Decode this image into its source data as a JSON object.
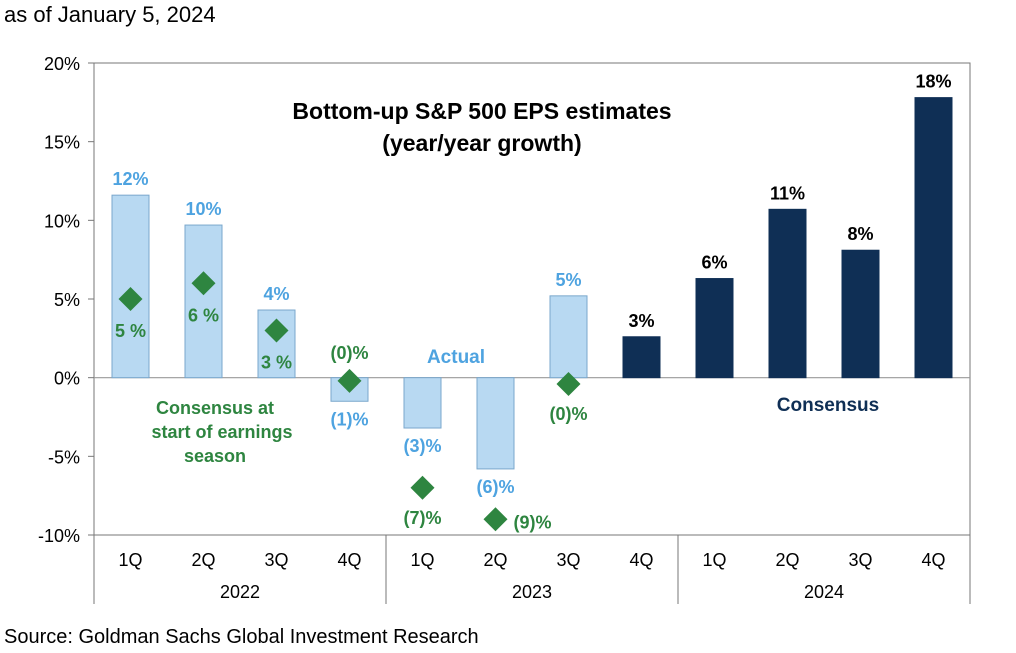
{
  "header": {
    "as_of": "as of January 5, 2024"
  },
  "footer": {
    "source": "Source: Goldman Sachs Global Investment Research"
  },
  "colors": {
    "actual_fill": "#b8d9f2",
    "actual_stroke": "#7aa7cc",
    "actual_label": "#4ea3e0",
    "consensus_bar": "#0f2f55",
    "diamond": "#2e8540",
    "diamond_label": "#2e8540",
    "consensus_label": "#0f2f55"
  },
  "chart_data": {
    "type": "bar",
    "title": "Bottom-up S&P 500 EPS estimates",
    "subtitle": "(year/year growth)",
    "ylim": [
      -10,
      20
    ],
    "yticks": [
      -10,
      -5,
      0,
      5,
      10,
      15,
      20
    ],
    "ytick_labels": [
      "-10%",
      "-5%",
      "0%",
      "5%",
      "10%",
      "15%",
      "20%"
    ],
    "grid": false,
    "categories": [
      "1Q",
      "2Q",
      "3Q",
      "4Q",
      "1Q",
      "2Q",
      "3Q",
      "4Q",
      "1Q",
      "2Q",
      "3Q",
      "4Q"
    ],
    "groups": [
      {
        "label": "2022",
        "count": 4
      },
      {
        "label": "2023",
        "count": 4
      },
      {
        "label": "2024",
        "count": 4
      }
    ],
    "series": [
      {
        "name": "Actual",
        "kind": "actual",
        "values": [
          11.6,
          9.7,
          4.3,
          -1.5,
          -3.2,
          -5.8,
          5.2,
          null,
          null,
          null,
          null,
          null
        ],
        "labels": [
          "12%",
          "10%",
          "4%",
          "(1)%",
          "(3)%",
          "(6)%",
          "5%",
          "",
          "",
          "",
          "",
          ""
        ]
      },
      {
        "name": "Consensus",
        "kind": "consensus",
        "values": [
          null,
          null,
          null,
          null,
          null,
          null,
          null,
          2.6,
          6.3,
          10.7,
          8.1,
          17.8
        ],
        "labels": [
          "",
          "",
          "",
          "",
          "",
          "",
          "",
          "3%",
          "6%",
          "11%",
          "8%",
          "18%"
        ]
      },
      {
        "name": "Consensus at start of earnings season",
        "kind": "diamond",
        "values": [
          5.0,
          6.0,
          3.0,
          -0.2,
          -7.0,
          -9.0,
          -0.4,
          null,
          null,
          null,
          null,
          null
        ],
        "labels": [
          "5 %",
          "6 %",
          "3 %",
          "(0)%",
          "(7)%",
          "(9)%",
          "(0)%",
          "",
          "",
          "",
          "",
          ""
        ]
      }
    ],
    "annotations": {
      "actual": "Actual",
      "consensus": "Consensus",
      "consensus_start_lines": [
        "Consensus at",
        "start of earnings",
        "season"
      ]
    }
  }
}
